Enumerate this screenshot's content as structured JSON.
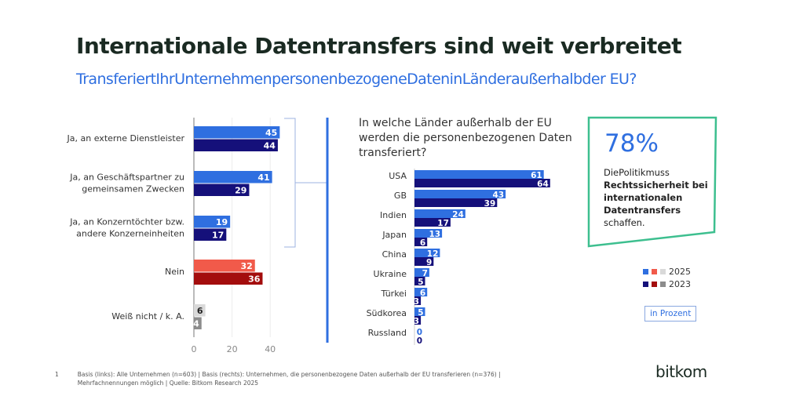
{
  "title": "Internationale Datentransfers sind weit verbreitet",
  "subtitle": "TransferiertIhrUnternehmenpersonenbezogeneDateninLänderaußerhalbder EU?",
  "colors": {
    "y2025": "#2f6fe0",
    "y2023": "#15107a",
    "nein2025": "#f15a4a",
    "nein2023": "#a30d0d",
    "wn2025": "#d9d9d9",
    "wn2023": "#8c8c8c",
    "box": "#3dbf8f"
  },
  "chart_data": [
    {
      "type": "bar",
      "orientation": "horizontal",
      "categories": [
        "Ja, an externe Dienstleister",
        "Ja, an Geschäftspartner zu gemeinsamen Zwecken",
        "Ja, an Konzerntöchter bzw. andere Konzerneinheiten",
        "Nein",
        "Weiß nicht / k. A."
      ],
      "series": [
        {
          "name": "2025",
          "values": [
            45,
            41,
            19,
            32,
            6
          ]
        },
        {
          "name": "2023",
          "values": [
            44,
            29,
            17,
            36,
            4
          ]
        }
      ],
      "xticks": [
        "0",
        "20",
        "40"
      ],
      "xlim": [
        0,
        50
      ],
      "grid": true
    },
    {
      "type": "bar",
      "orientation": "horizontal",
      "title": "In welche Länder außerhalb der EU werden die personenbezogenen Daten transferiert?",
      "categories": [
        "USA",
        "GB",
        "Indien",
        "Japan",
        "China",
        "Ukraine",
        "Türkei",
        "Südkorea",
        "Russland"
      ],
      "series": [
        {
          "name": "2025",
          "values": [
            61,
            43,
            24,
            13,
            12,
            7,
            6,
            5,
            0
          ]
        },
        {
          "name": "2023",
          "values": [
            64,
            39,
            17,
            6,
            9,
            5,
            3,
            3,
            0
          ]
        }
      ]
    }
  ],
  "callout": {
    "value": "78%",
    "line1": "DiePolitikmuss",
    "bold": "Rechtssicherheit bei internationalen Datentransfers",
    "line2": "schaffen."
  },
  "legend": {
    "y2025": "2025",
    "y2023": "2023",
    "unit": "in Prozent"
  },
  "footnote": {
    "number": "1",
    "text": "Basis (links): Alle Unternehmen (n=603) | Basis (rechts): Unternehmen, die personenbezogene Daten außerhalb der EU transferieren (n=376) | Mehrfachnennungen möglich | Quelle: Bitkom Research 2025"
  },
  "logo": "bitkom"
}
